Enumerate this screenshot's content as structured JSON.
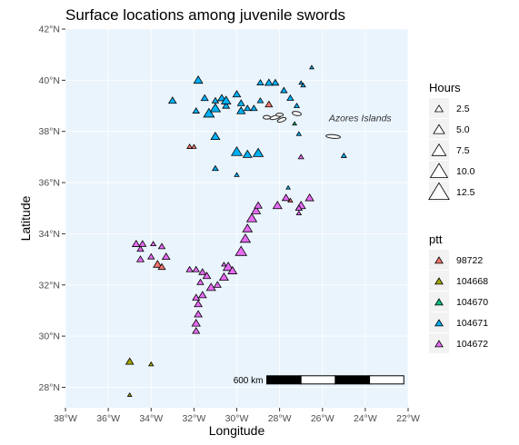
{
  "chart_data": {
    "type": "scatter",
    "title": "Surface locations among juvenile swords",
    "xlabel": "Longitude",
    "ylabel": "Latitude",
    "xlim": [
      -38,
      -22
    ],
    "ylim": [
      27.2,
      42
    ],
    "xticks": [
      -38,
      -36,
      -34,
      -32,
      -30,
      -28,
      -26,
      -24,
      -22
    ],
    "xtick_labels": [
      "38°W",
      "36°W",
      "34°W",
      "32°W",
      "30°W",
      "28°W",
      "26°W",
      "24°W",
      "22°W"
    ],
    "yticks": [
      28,
      30,
      32,
      34,
      36,
      38,
      40,
      42
    ],
    "ytick_labels": [
      "28°N",
      "30°N",
      "32°N",
      "34°N",
      "36°N",
      "38°N",
      "40°N",
      "42°N"
    ],
    "background_color": "#eaf4fd",
    "annotation": "Azores Islands",
    "scale_bar_label": "600 km",
    "size_legend": {
      "title": "Hours",
      "values": [
        2.5,
        5.0,
        7.5,
        10.0,
        12.5
      ],
      "labels": [
        "2.5",
        "5.0",
        "7.5",
        "10.0",
        "12.5"
      ]
    },
    "color_legend": {
      "title": "ptt",
      "position": "right",
      "entries": [
        {
          "label": "98722",
          "color": "#f8766d"
        },
        {
          "label": "104668",
          "color": "#a3a500"
        },
        {
          "label": "104670",
          "color": "#00bf7d"
        },
        {
          "label": "104671",
          "color": "#00b0f6"
        },
        {
          "label": "104672",
          "color": "#e76bf3"
        }
      ]
    },
    "series": [
      {
        "ptt": "98722",
        "points": [
          [
            -33.7,
            32.8,
            9
          ],
          [
            -33.5,
            32.7,
            7
          ],
          [
            -32.2,
            37.4,
            4
          ],
          [
            -32.0,
            37.4,
            3
          ],
          [
            -28.5,
            39.05,
            7
          ],
          [
            -27.5,
            35.3,
            3
          ]
        ]
      },
      {
        "ptt": "104668",
        "points": [
          [
            -35.0,
            29.0,
            8
          ],
          [
            -34.0,
            28.9,
            3
          ],
          [
            -35.0,
            27.7,
            2
          ]
        ]
      },
      {
        "ptt": "104670",
        "points": [
          [
            -27.3,
            38.3,
            2
          ]
        ]
      },
      {
        "ptt": "104671",
        "points": [
          [
            -31.8,
            40.0,
            10
          ],
          [
            -31.5,
            39.3,
            7
          ],
          [
            -31.0,
            39.2,
            6
          ],
          [
            -30.7,
            39.3,
            8
          ],
          [
            -30.5,
            39.0,
            7
          ],
          [
            -30.0,
            39.45,
            8
          ],
          [
            -29.8,
            39.1,
            7
          ],
          [
            -29.5,
            38.9,
            6
          ],
          [
            -29.2,
            38.9,
            6
          ],
          [
            -28.9,
            39.2,
            5
          ],
          [
            -33.0,
            39.2,
            8
          ],
          [
            -31.9,
            38.8,
            6
          ],
          [
            -31.3,
            38.7,
            13
          ],
          [
            -31.0,
            38.9,
            12
          ],
          [
            -30.5,
            39.2,
            11
          ],
          [
            -29.8,
            38.8,
            9
          ],
          [
            -28.9,
            39.9,
            6
          ],
          [
            -28.5,
            39.9,
            8
          ],
          [
            -28.2,
            39.9,
            7
          ],
          [
            -27.8,
            39.6,
            6
          ],
          [
            -27.5,
            39.3,
            6
          ],
          [
            -27.2,
            39.0,
            4
          ],
          [
            -26.9,
            39.8,
            3
          ],
          [
            -27.0,
            39.9,
            2
          ],
          [
            -26.5,
            40.5,
            2
          ],
          [
            -31.0,
            37.8,
            10
          ],
          [
            -30.0,
            37.2,
            13
          ],
          [
            -29.5,
            37.1,
            10
          ],
          [
            -29.0,
            37.15,
            12
          ],
          [
            -31.0,
            36.55,
            5
          ],
          [
            -30.0,
            36.3,
            3
          ],
          [
            -27.1,
            37.9,
            3
          ],
          [
            -25.0,
            37.05,
            4
          ],
          [
            -27.6,
            35.8,
            2
          ]
        ]
      },
      {
        "ptt": "104672",
        "points": [
          [
            -34.7,
            33.6,
            8
          ],
          [
            -34.5,
            33.4,
            6
          ],
          [
            -34.4,
            33.6,
            7
          ],
          [
            -33.9,
            33.6,
            4
          ],
          [
            -33.5,
            33.5,
            6
          ],
          [
            -34.5,
            33.0,
            7
          ],
          [
            -34.0,
            33.1,
            6
          ],
          [
            -33.3,
            33.1,
            8
          ],
          [
            -32.2,
            32.6,
            6
          ],
          [
            -31.6,
            32.5,
            7
          ],
          [
            -31.9,
            32.6,
            6
          ],
          [
            -31.4,
            32.35,
            8
          ],
          [
            -31.7,
            32.1,
            6
          ],
          [
            -31.6,
            31.6,
            8
          ],
          [
            -31.9,
            31.5,
            7
          ],
          [
            -31.8,
            31.25,
            8
          ],
          [
            -31.8,
            30.85,
            8
          ],
          [
            -31.9,
            30.5,
            9
          ],
          [
            -31.9,
            30.2,
            7
          ],
          [
            -31.2,
            31.9,
            10
          ],
          [
            -30.9,
            32.0,
            7
          ],
          [
            -30.6,
            32.3,
            10
          ],
          [
            -30.4,
            32.7,
            12
          ],
          [
            -30.2,
            32.55,
            10
          ],
          [
            -29.8,
            33.3,
            14
          ],
          [
            -29.6,
            33.8,
            12
          ],
          [
            -29.5,
            34.2,
            11
          ],
          [
            -29.3,
            34.6,
            12
          ],
          [
            -29.1,
            34.9,
            10
          ],
          [
            -29.0,
            35.1,
            8
          ],
          [
            -28.1,
            35.1,
            10
          ],
          [
            -27.7,
            35.4,
            8
          ],
          [
            -27.0,
            35.1,
            10
          ],
          [
            -26.6,
            35.4,
            9
          ],
          [
            -27.1,
            35.0,
            6
          ],
          [
            -27.1,
            34.8,
            3
          ],
          [
            -27.0,
            37.0,
            4
          ],
          [
            -30.6,
            32.8,
            3
          ]
        ]
      }
    ]
  }
}
